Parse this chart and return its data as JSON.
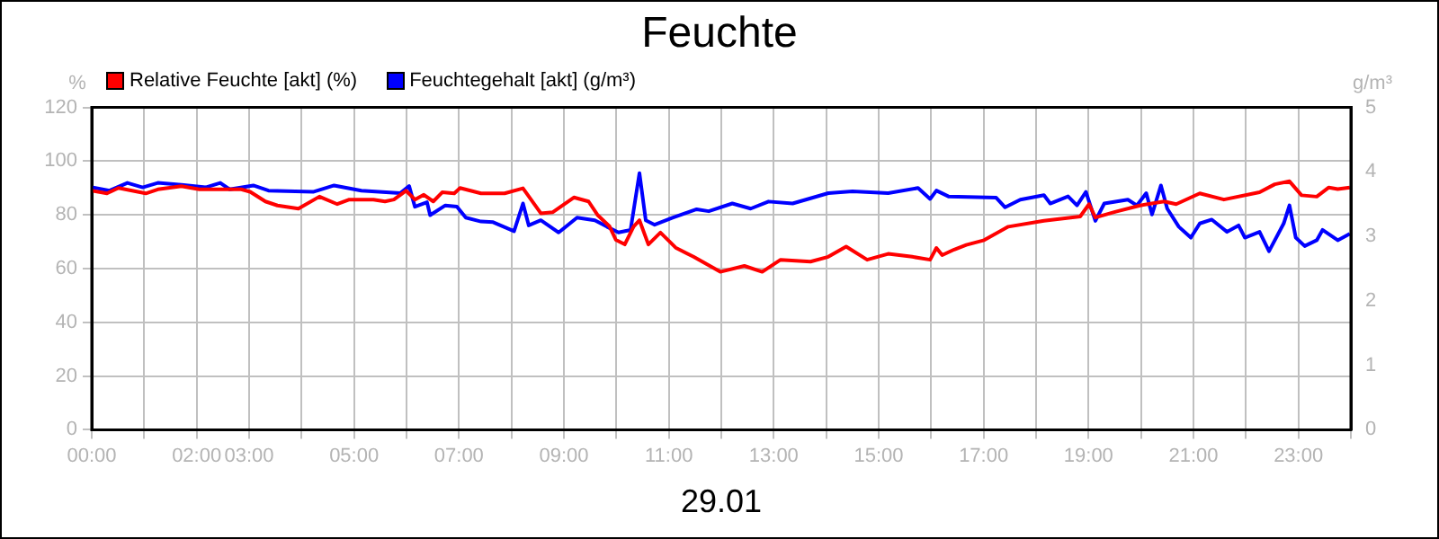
{
  "chart_data": {
    "type": "line",
    "title": "Feuchte",
    "xlabel": "29.01",
    "ylabel": "%",
    "y2label": "g/m³",
    "legend": "top left",
    "grid": true,
    "marker": "none",
    "line_style": "solid",
    "xlim": [
      0,
      24
    ],
    "xticks": [
      {
        "value": 0,
        "label": "00:00"
      },
      {
        "value": 1,
        "label": null
      },
      {
        "value": 2,
        "label": "02:00"
      },
      {
        "value": 3,
        "label": "03:00"
      },
      {
        "value": 4,
        "label": null
      },
      {
        "value": 5,
        "label": "05:00"
      },
      {
        "value": 6,
        "label": null
      },
      {
        "value": 7,
        "label": "07:00"
      },
      {
        "value": 8,
        "label": null
      },
      {
        "value": 9,
        "label": "09:00"
      },
      {
        "value": 10,
        "label": null
      },
      {
        "value": 11,
        "label": "11:00"
      },
      {
        "value": 12,
        "label": null
      },
      {
        "value": 13,
        "label": "13:00"
      },
      {
        "value": 14,
        "label": null
      },
      {
        "value": 15,
        "label": "15:00"
      },
      {
        "value": 16,
        "label": null
      },
      {
        "value": 17,
        "label": "17:00"
      },
      {
        "value": 18,
        "label": null
      },
      {
        "value": 19,
        "label": "19:00"
      },
      {
        "value": 20,
        "label": null
      },
      {
        "value": 21,
        "label": "21:00"
      },
      {
        "value": 22,
        "label": null
      },
      {
        "value": 23,
        "label": "23:00"
      },
      {
        "value": 24,
        "label": null
      }
    ],
    "ylim": [
      0,
      120
    ],
    "yticks": [
      0,
      20,
      40,
      60,
      80,
      100,
      120
    ],
    "y2lim": [
      0,
      5
    ],
    "y2ticks": [
      0,
      1,
      2,
      3,
      4,
      5
    ],
    "series": [
      {
        "name": "Relative Feuchte [akt] (%)",
        "color": "#ff0000",
        "x": [
          0,
          0.29,
          0.51,
          1.03,
          1.26,
          1.71,
          2.05,
          2.85,
          3.02,
          3.31,
          3.54,
          3.94,
          4.34,
          4.68,
          4.91,
          5.37,
          5.59,
          5.76,
          5.99,
          6.16,
          6.33,
          6.51,
          6.68,
          6.91,
          7.02,
          7.42,
          7.87,
          8.22,
          8.56,
          8.79,
          9.19,
          9.47,
          9.64,
          9.87,
          9.99,
          10.16,
          10.33,
          10.44,
          10.61,
          10.84,
          11.13,
          11.47,
          11.98,
          12.44,
          12.78,
          13.13,
          13.7,
          14.04,
          14.38,
          14.78,
          15.18,
          15.64,
          15.98,
          16.1,
          16.21,
          16.44,
          16.67,
          17.01,
          17.47,
          18.15,
          18.84,
          19.01,
          19.13,
          19.52,
          19.98,
          20.44,
          20.67,
          21.12,
          21.58,
          22.26,
          22.55,
          22.83,
          23.06,
          23.35,
          23.58,
          23.75,
          23.98
        ],
        "values": [
          89,
          88,
          90,
          88,
          89.5,
          90.7,
          89.5,
          89.5,
          88.6,
          85,
          83.5,
          82.3,
          86.8,
          84,
          85.7,
          85.7,
          85,
          85.7,
          89,
          85.7,
          87.5,
          85,
          88.4,
          88,
          90,
          88,
          88,
          89.9,
          80.6,
          81,
          86.5,
          85,
          80,
          75.7,
          70.7,
          69,
          75.7,
          78,
          69,
          73.4,
          67.8,
          64.4,
          58.8,
          61,
          58.8,
          63.3,
          62.6,
          64.4,
          68.2,
          63.3,
          65.5,
          64.4,
          63.3,
          67.7,
          65,
          67.1,
          68.8,
          70.6,
          75.6,
          77.8,
          79.4,
          84,
          79,
          81.2,
          83.5,
          85,
          84,
          88,
          85.7,
          88.4,
          91.4,
          92.5,
          87.3,
          86.8,
          90.2,
          89.6,
          90.2
        ]
      },
      {
        "name": "Feuchtegehalt [akt] (g/m³)",
        "color": "#0000ff",
        "axis": "y2",
        "x": [
          0,
          0.34,
          0.68,
          0.97,
          1.26,
          1.71,
          2.17,
          2.45,
          2.63,
          3.08,
          3.37,
          4.22,
          4.62,
          5.14,
          5.88,
          6.05,
          6.16,
          6.39,
          6.45,
          6.74,
          6.96,
          7.13,
          7.42,
          7.65,
          8.05,
          8.22,
          8.33,
          8.56,
          8.9,
          9.25,
          9.59,
          9.82,
          10.04,
          10.27,
          10.44,
          10.56,
          10.73,
          11.07,
          11.53,
          11.76,
          12.21,
          12.56,
          12.9,
          13.36,
          14.04,
          14.5,
          15.18,
          15.75,
          15.98,
          16.1,
          16.33,
          17.24,
          17.41,
          17.7,
          18.15,
          18.27,
          18.61,
          18.78,
          18.95,
          19.13,
          19.3,
          19.75,
          19.92,
          20.1,
          20.21,
          20.38,
          20.5,
          20.72,
          20.95,
          21.12,
          21.35,
          21.64,
          21.86,
          21.98,
          22.26,
          22.44,
          22.72,
          22.83,
          22.95,
          23.12,
          23.35,
          23.46,
          23.75,
          23.98
        ],
        "values": [
          3.76,
          3.71,
          3.83,
          3.76,
          3.83,
          3.8,
          3.76,
          3.83,
          3.73,
          3.79,
          3.71,
          3.69,
          3.79,
          3.71,
          3.67,
          3.78,
          3.46,
          3.53,
          3.33,
          3.48,
          3.46,
          3.29,
          3.23,
          3.22,
          3.08,
          3.51,
          3.17,
          3.25,
          3.06,
          3.29,
          3.25,
          3.15,
          3.06,
          3.1,
          3.98,
          3.25,
          3.18,
          3.29,
          3.42,
          3.39,
          3.51,
          3.43,
          3.54,
          3.51,
          3.67,
          3.7,
          3.67,
          3.75,
          3.58,
          3.71,
          3.62,
          3.6,
          3.45,
          3.57,
          3.64,
          3.51,
          3.62,
          3.48,
          3.69,
          3.24,
          3.51,
          3.57,
          3.48,
          3.67,
          3.34,
          3.79,
          3.43,
          3.15,
          2.98,
          3.2,
          3.26,
          3.07,
          3.17,
          2.98,
          3.07,
          2.77,
          3.2,
          3.48,
          2.98,
          2.85,
          2.94,
          3.1,
          2.94,
          3.04
        ]
      }
    ]
  }
}
